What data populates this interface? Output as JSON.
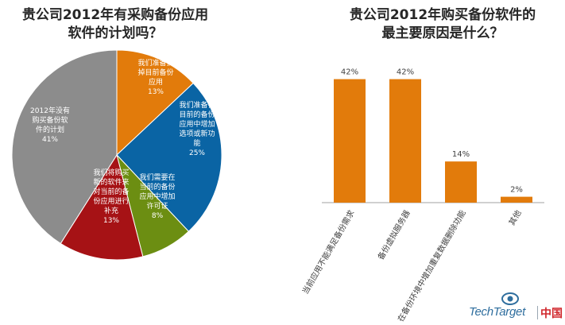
{
  "chart_data": [
    {
      "type": "pie",
      "title_lines": [
        "贵公司2012年有采购备份应用",
        "软件的计划吗？"
      ],
      "slices": [
        {
          "label_lines": [
            "我们准备换",
            "掉目前备份",
            "应用",
            "13%"
          ],
          "value": 13,
          "color": "#e27b0b"
        },
        {
          "label_lines": [
            "我们准备在",
            "目前的备份",
            "应用中增加",
            "选项或新功",
            "能",
            "25%"
          ],
          "value": 25,
          "color": "#0a64a4"
        },
        {
          "label_lines": [
            "我们需要在",
            "当前的备份",
            "应用中增加",
            "许可证",
            "8%"
          ],
          "value": 8,
          "color": "#6c8e12"
        },
        {
          "label_lines": [
            "我们将购买",
            "新的软件来",
            "对当前的备",
            "份应用进行",
            "补充",
            "13%"
          ],
          "value": 13,
          "color": "#a61215"
        },
        {
          "label_lines": [
            "2012年没有",
            "购买备份软",
            "件的计划",
            "41%"
          ],
          "value": 41,
          "color": "#8c8c8c"
        }
      ]
    },
    {
      "type": "bar",
      "title_lines": [
        "贵公司2012年购买备份软件的",
        "最主要原因是什么？"
      ],
      "categories": [
        "当前应用不能满足备份需求",
        "备份虚拟服务器",
        "在备份环境中增加重复数据删除功能",
        "其他"
      ],
      "values": [
        42,
        42,
        14,
        2
      ],
      "value_labels": [
        "42%",
        "42%",
        "14%",
        "2%"
      ],
      "ylim": [
        0,
        50
      ],
      "color": "#e27b0b",
      "grid": false
    }
  ],
  "logo": {
    "text": "TechTarget",
    "cn": "中国"
  }
}
